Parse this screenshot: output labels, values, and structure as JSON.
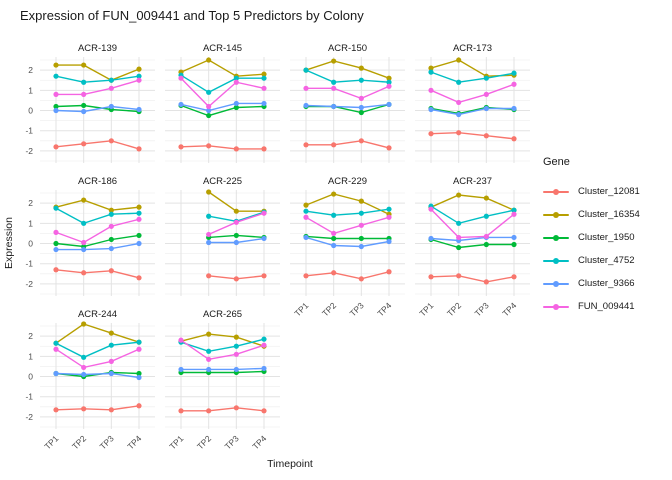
{
  "chart_data": {
    "type": "line",
    "title": "Expression of FUN_009441 and Top 5 Predictors by Colony",
    "xlabel": "Timepoint",
    "ylabel": "Expression",
    "legend_title": "Gene",
    "legend_position": "right",
    "grid": true,
    "x_categories": [
      "TP1",
      "TP2",
      "TP3",
      "TP4"
    ],
    "y_ticks": [
      2,
      1,
      0,
      -1,
      -2
    ],
    "y_minor_ticks": [
      -2.5,
      -1.5,
      -0.5,
      0.5,
      1.5,
      2.5
    ],
    "ylim": [
      -2.6,
      2.65
    ],
    "series": [
      {
        "name": "Cluster_12081",
        "color": "#F8766D"
      },
      {
        "name": "Cluster_16354",
        "color": "#B79F00"
      },
      {
        "name": "Cluster_1950",
        "color": "#00BA38"
      },
      {
        "name": "Cluster_4752",
        "color": "#00BFC4"
      },
      {
        "name": "Cluster_9366",
        "color": "#619CFF"
      },
      {
        "name": "FUN_009441",
        "color": "#F564E2"
      }
    ],
    "facets": [
      {
        "colony": "ACR-139",
        "values": {
          "Cluster_12081": [
            -1.8,
            -1.65,
            -1.5,
            -1.9
          ],
          "Cluster_16354": [
            2.25,
            2.25,
            1.5,
            2.05
          ],
          "Cluster_1950": [
            0.2,
            0.25,
            0.05,
            -0.05
          ],
          "Cluster_4752": [
            1.7,
            1.4,
            1.5,
            1.7
          ],
          "Cluster_9366": [
            0.0,
            -0.05,
            0.2,
            0.05
          ],
          "FUN_009441": [
            0.8,
            0.8,
            1.1,
            1.5
          ]
        }
      },
      {
        "colony": "ACR-145",
        "values": {
          "Cluster_12081": [
            -1.8,
            -1.75,
            -1.9,
            -1.9
          ],
          "Cluster_16354": [
            1.9,
            2.5,
            1.7,
            1.8
          ],
          "Cluster_1950": [
            0.25,
            -0.25,
            0.15,
            0.2
          ],
          "Cluster_4752": [
            1.75,
            0.9,
            1.6,
            1.6
          ],
          "Cluster_9366": [
            0.3,
            0.0,
            0.35,
            0.35
          ],
          "FUN_009441": [
            1.6,
            0.2,
            1.4,
            1.1
          ]
        }
      },
      {
        "colony": "ACR-150",
        "values": {
          "Cluster_12081": [
            -1.7,
            -1.7,
            -1.5,
            -1.85
          ],
          "Cluster_16354": [
            2.0,
            2.45,
            2.1,
            1.6
          ],
          "Cluster_1950": [
            0.2,
            0.2,
            -0.1,
            0.3
          ],
          "Cluster_4752": [
            2.0,
            1.4,
            1.5,
            1.4
          ],
          "Cluster_9366": [
            0.25,
            0.2,
            0.15,
            0.3
          ],
          "FUN_009441": [
            1.1,
            1.1,
            0.6,
            1.2
          ]
        }
      },
      {
        "colony": "ACR-173",
        "values": {
          "Cluster_12081": [
            -1.15,
            -1.1,
            -1.25,
            -1.4
          ],
          "Cluster_16354": [
            2.1,
            2.5,
            1.7,
            1.75
          ],
          "Cluster_1950": [
            0.1,
            -0.15,
            0.15,
            0.05
          ],
          "Cluster_4752": [
            1.9,
            1.4,
            1.6,
            1.85
          ],
          "Cluster_9366": [
            0.05,
            -0.2,
            0.1,
            0.1
          ],
          "FUN_009441": [
            1.0,
            0.4,
            0.8,
            1.3
          ]
        }
      },
      {
        "colony": "ACR-186",
        "values": {
          "Cluster_12081": [
            -1.3,
            -1.45,
            -1.35,
            -1.7
          ],
          "Cluster_16354": [
            1.8,
            2.15,
            1.65,
            1.8
          ],
          "Cluster_1950": [
            0.0,
            -0.15,
            0.2,
            0.4
          ],
          "Cluster_4752": [
            1.75,
            1.0,
            1.45,
            1.5
          ],
          "Cluster_9366": [
            -0.3,
            -0.3,
            -0.25,
            0.0
          ],
          "FUN_009441": [
            0.55,
            0.05,
            0.85,
            1.2
          ]
        }
      },
      {
        "colony": "ACR-225",
        "values": {
          "Cluster_12081": [
            null,
            -1.6,
            -1.75,
            -1.6
          ],
          "Cluster_16354": [
            null,
            2.55,
            1.6,
            1.6
          ],
          "Cluster_1950": [
            null,
            0.3,
            0.4,
            0.3
          ],
          "Cluster_4752": [
            null,
            1.35,
            1.1,
            1.55
          ],
          "Cluster_9366": [
            null,
            0.05,
            0.05,
            0.25
          ],
          "FUN_009441": [
            null,
            0.45,
            1.05,
            1.5
          ]
        }
      },
      {
        "colony": "ACR-229",
        "values": {
          "Cluster_12081": [
            -1.6,
            -1.45,
            -1.75,
            -1.4
          ],
          "Cluster_16354": [
            1.9,
            2.45,
            2.1,
            1.45
          ],
          "Cluster_1950": [
            0.35,
            0.25,
            0.25,
            0.25
          ],
          "Cluster_4752": [
            1.6,
            1.4,
            1.5,
            1.7
          ],
          "Cluster_9366": [
            0.3,
            -0.1,
            -0.15,
            0.1
          ],
          "FUN_009441": [
            1.3,
            0.5,
            0.9,
            1.3
          ]
        }
      },
      {
        "colony": "ACR-237",
        "values": {
          "Cluster_12081": [
            -1.65,
            -1.6,
            -1.9,
            -1.65
          ],
          "Cluster_16354": [
            1.8,
            2.4,
            2.25,
            1.65
          ],
          "Cluster_1950": [
            0.2,
            -0.2,
            -0.05,
            -0.05
          ],
          "Cluster_4752": [
            1.85,
            1.0,
            1.35,
            1.65
          ],
          "Cluster_9366": [
            0.25,
            0.15,
            0.3,
            0.3
          ],
          "FUN_009441": [
            1.7,
            0.3,
            0.35,
            1.45
          ]
        }
      },
      {
        "colony": "ACR-244",
        "values": {
          "Cluster_12081": [
            -1.65,
            -1.6,
            -1.65,
            -1.45
          ],
          "Cluster_16354": [
            1.65,
            2.6,
            2.15,
            1.7
          ],
          "Cluster_1950": [
            0.15,
            0.0,
            0.2,
            0.15
          ],
          "Cluster_4752": [
            1.65,
            0.95,
            1.55,
            1.7
          ],
          "Cluster_9366": [
            0.15,
            0.1,
            0.15,
            -0.05
          ],
          "FUN_009441": [
            1.35,
            0.45,
            0.75,
            1.35
          ]
        }
      },
      {
        "colony": "ACR-265",
        "values": {
          "Cluster_12081": [
            -1.7,
            -1.7,
            -1.55,
            -1.7
          ],
          "Cluster_16354": [
            1.75,
            2.1,
            1.95,
            1.5
          ],
          "Cluster_1950": [
            0.2,
            0.2,
            0.2,
            0.25
          ],
          "Cluster_4752": [
            1.7,
            1.25,
            1.5,
            1.85
          ],
          "Cluster_9366": [
            0.35,
            0.35,
            0.35,
            0.4
          ],
          "FUN_009441": [
            1.8,
            0.85,
            1.1,
            1.55
          ]
        }
      }
    ]
  }
}
